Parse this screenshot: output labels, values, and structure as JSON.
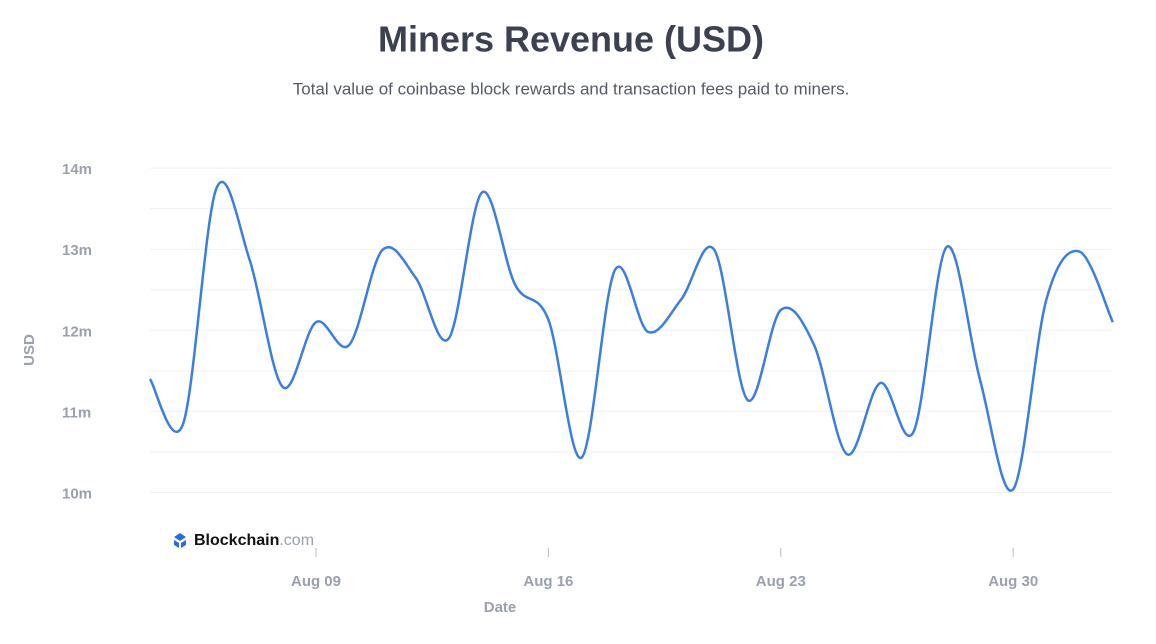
{
  "chart_data": {
    "type": "line",
    "title": "Miners Revenue (USD)",
    "subtitle": "Total value of coinbase block rewards and transaction fees paid to miners.",
    "x_label": "Date",
    "y_label": "USD",
    "watermark": {
      "brand": "Blockchain",
      "suffix": ".com"
    },
    "x": [
      "Aug 04",
      "Aug 05",
      "Aug 06",
      "Aug 07",
      "Aug 08",
      "Aug 09",
      "Aug 10",
      "Aug 11",
      "Aug 12",
      "Aug 13",
      "Aug 14",
      "Aug 15",
      "Aug 16",
      "Aug 17",
      "Aug 18",
      "Aug 19",
      "Aug 20",
      "Aug 21",
      "Aug 22",
      "Aug 23",
      "Aug 24",
      "Aug 25",
      "Aug 26",
      "Aug 27",
      "Aug 28",
      "Aug 29",
      "Aug 30",
      "Aug 31",
      "Sep 01",
      "Sep 02"
    ],
    "series": [
      {
        "name": "Miners Revenue",
        "color": "#3c7ee0",
        "values": [
          11.4,
          10.85,
          13.75,
          12.87,
          11.3,
          12.1,
          11.82,
          12.99,
          12.65,
          11.9,
          13.7,
          12.56,
          12.13,
          10.43,
          12.74,
          11.98,
          12.38,
          12.99,
          11.14,
          12.25,
          11.82,
          10.47,
          11.35,
          10.75,
          13.03,
          11.39,
          10.04,
          12.38,
          12.97,
          12.1
        ]
      }
    ],
    "xticks": [
      "Aug 09",
      "Aug 16",
      "Aug 23",
      "Aug 30"
    ],
    "ylim": [
      9.5,
      14.1
    ],
    "yticks": [
      {
        "value": 10,
        "label": "10m"
      },
      {
        "value": 11,
        "label": "11m"
      },
      {
        "value": 12,
        "label": "12m"
      },
      {
        "value": 13,
        "label": "13m"
      },
      {
        "value": 14,
        "label": "14m"
      }
    ],
    "minor_yticks": [
      10.5,
      11.5,
      12.5,
      13.5
    ],
    "grid": true
  }
}
